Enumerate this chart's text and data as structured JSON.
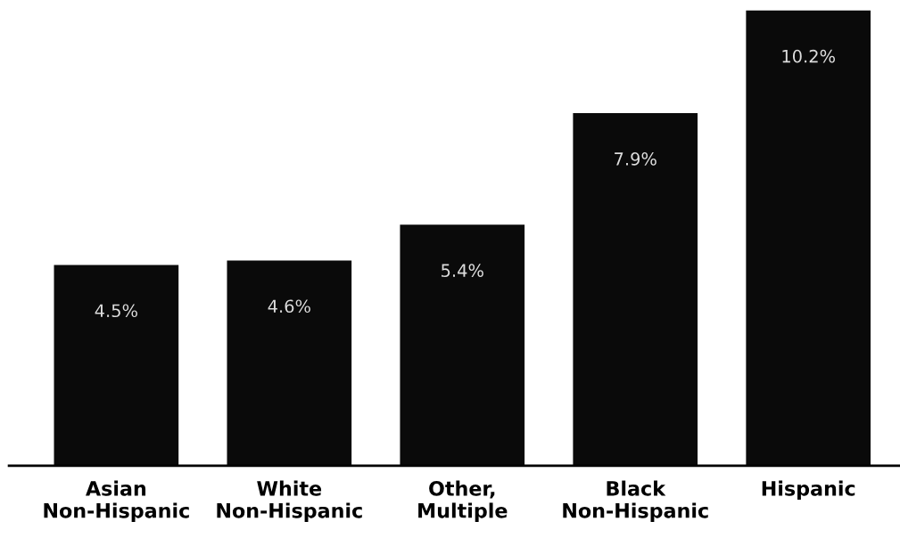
{
  "chart_data": {
    "type": "bar",
    "categories": [
      "Asian\nNon-Hispanic",
      "White\nNon-Hispanic",
      "Other,\nMultiple",
      "Black\nNon-Hispanic",
      "Hispanic"
    ],
    "values": [
      4.5,
      4.6,
      5.4,
      7.9,
      10.2
    ],
    "value_labels": [
      "4.5%",
      "4.6%",
      "5.4%",
      "7.9%",
      "10.2%"
    ],
    "color": "#0a0a0a",
    "grid": false,
    "legend": false
  }
}
